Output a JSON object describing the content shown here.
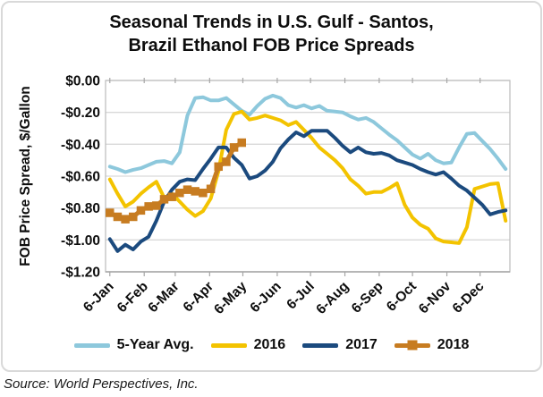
{
  "figure": {
    "title_line1": "Seasonal Trends in U.S. Gulf - Santos,",
    "title_line2": "Brazil Ethanol FOB Price Spreads",
    "source": "Source: World Perspectives, Inc."
  },
  "chart_data": {
    "type": "line",
    "title": "Seasonal Trends in U.S. Gulf - Santos, Brazil Ethanol FOB Price Spreads",
    "xlabel": "",
    "ylabel": "FOB Price Spread, $/Gallon",
    "ylim": [
      -1.2,
      0
    ],
    "x_unit": "weekly observations, January through December",
    "grid": true,
    "legend_position": "bottom",
    "colors": {
      "grid": "#d9d9d9",
      "plot_border": "#bfbfbf",
      "axis": "#a6a6a6",
      "text": "#0d0d0d"
    },
    "y_ticks": [
      {
        "value": 0,
        "label": "$0.00"
      },
      {
        "value": -0.2,
        "label": "-$0.20"
      },
      {
        "value": -0.4,
        "label": "-$0.40"
      },
      {
        "value": -0.6,
        "label": "-$0.60"
      },
      {
        "value": -0.8,
        "label": "-$0.80"
      },
      {
        "value": -1.0,
        "label": "-$1.00"
      },
      {
        "value": -1.2,
        "label": "-$1.20"
      }
    ],
    "x_ticks": [
      {
        "week": 0,
        "label": "6-Jan"
      },
      {
        "week": 4.43,
        "label": "6-Feb"
      },
      {
        "week": 8.43,
        "label": "6-Mar"
      },
      {
        "week": 12.86,
        "label": "6-Apr"
      },
      {
        "week": 17.14,
        "label": "6-May"
      },
      {
        "week": 21.57,
        "label": "6-Jun"
      },
      {
        "week": 25.86,
        "label": "6-Jul"
      },
      {
        "week": 30.29,
        "label": "6-Aug"
      },
      {
        "week": 34.71,
        "label": "6-Sep"
      },
      {
        "week": 39.0,
        "label": "6-Oct"
      },
      {
        "week": 43.43,
        "label": "6-Nov"
      },
      {
        "week": 47.71,
        "label": "6-Dec"
      }
    ],
    "series": [
      {
        "name": "5-Year Avg.",
        "color": "#8dc8dc",
        "marker": "none",
        "start_week": 0,
        "values": [
          -0.54,
          -0.555,
          -0.575,
          -0.56,
          -0.55,
          -0.53,
          -0.51,
          -0.505,
          -0.52,
          -0.45,
          -0.22,
          -0.11,
          -0.105,
          -0.125,
          -0.125,
          -0.11,
          -0.15,
          -0.19,
          -0.215,
          -0.16,
          -0.115,
          -0.095,
          -0.11,
          -0.155,
          -0.17,
          -0.155,
          -0.175,
          -0.16,
          -0.19,
          -0.195,
          -0.2,
          -0.225,
          -0.245,
          -0.235,
          -0.26,
          -0.3,
          -0.34,
          -0.375,
          -0.42,
          -0.465,
          -0.49,
          -0.46,
          -0.5,
          -0.52,
          -0.515,
          -0.42,
          -0.335,
          -0.33,
          -0.38,
          -0.43,
          -0.49,
          -0.555
        ]
      },
      {
        "name": "2016",
        "color": "#f3c300",
        "marker": "none",
        "start_week": 0,
        "values": [
          -0.62,
          -0.71,
          -0.79,
          -0.76,
          -0.71,
          -0.67,
          -0.635,
          -0.735,
          -0.71,
          -0.76,
          -0.81,
          -0.85,
          -0.82,
          -0.74,
          -0.57,
          -0.31,
          -0.21,
          -0.195,
          -0.245,
          -0.235,
          -0.22,
          -0.235,
          -0.25,
          -0.28,
          -0.26,
          -0.31,
          -0.36,
          -0.42,
          -0.46,
          -0.5,
          -0.55,
          -0.62,
          -0.66,
          -0.71,
          -0.7,
          -0.7,
          -0.675,
          -0.645,
          -0.78,
          -0.86,
          -0.905,
          -0.93,
          -0.99,
          -1.01,
          -1.015,
          -1.02,
          -0.92,
          -0.68,
          -0.665,
          -0.65,
          -0.645,
          -0.88
        ]
      },
      {
        "name": "2017",
        "color": "#1b4a7e",
        "marker": "none",
        "start_week": 0,
        "values": [
          -0.995,
          -1.07,
          -1.03,
          -1.06,
          -1.01,
          -0.98,
          -0.88,
          -0.76,
          -0.685,
          -0.635,
          -0.62,
          -0.625,
          -0.555,
          -0.49,
          -0.42,
          -0.42,
          -0.485,
          -0.53,
          -0.615,
          -0.6,
          -0.565,
          -0.51,
          -0.425,
          -0.37,
          -0.325,
          -0.35,
          -0.315,
          -0.315,
          -0.315,
          -0.36,
          -0.41,
          -0.45,
          -0.42,
          -0.45,
          -0.46,
          -0.455,
          -0.47,
          -0.5,
          -0.515,
          -0.53,
          -0.555,
          -0.575,
          -0.59,
          -0.575,
          -0.615,
          -0.66,
          -0.69,
          -0.735,
          -0.78,
          -0.84,
          -0.825,
          -0.815
        ]
      },
      {
        "name": "2018",
        "color": "#c77c21",
        "marker": "square",
        "start_week": 0,
        "values": [
          -0.83,
          -0.855,
          -0.87,
          -0.855,
          -0.815,
          -0.79,
          -0.785,
          -0.745,
          -0.73,
          -0.705,
          -0.685,
          -0.695,
          -0.705,
          -0.68,
          -0.54,
          -0.51,
          -0.42,
          -0.39
        ]
      }
    ]
  }
}
